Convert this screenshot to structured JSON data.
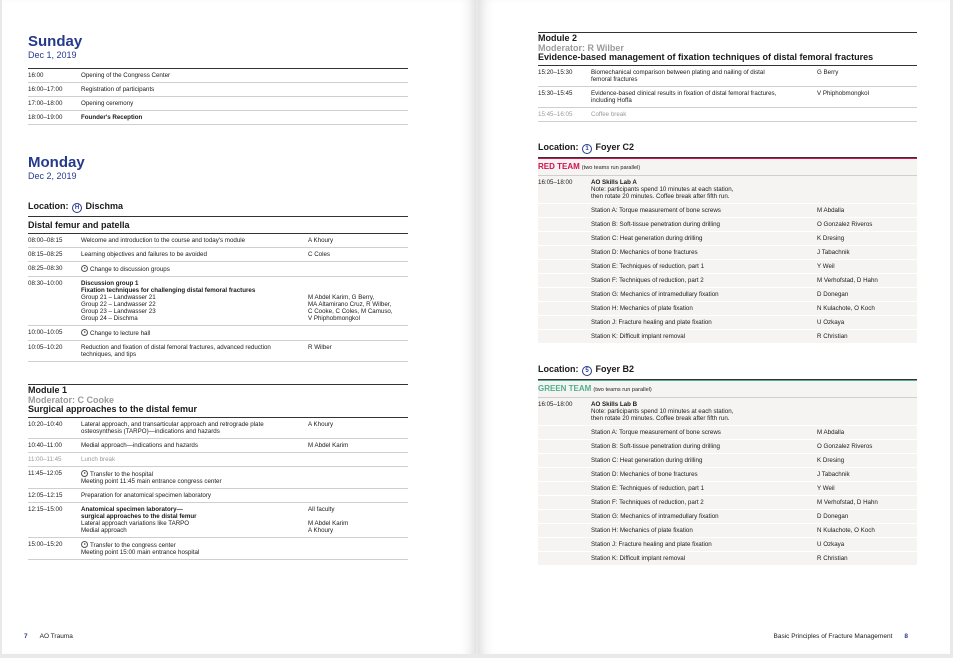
{
  "left_page": {
    "blocks": [
      {
        "day": "Sunday",
        "date": "Dec 1, 2019"
      },
      {
        "rows": [
          {
            "time": "16:00",
            "activity": [
              "Opening of the Congress Center"
            ]
          },
          {
            "time": "16:00–17:00",
            "activity": [
              "Registration of participants"
            ]
          },
          {
            "time": "17:00–18:00",
            "activity": [
              "Opening ceremony"
            ]
          },
          {
            "time": "18:00–19:00",
            "heading": [
              "Founder's Reception"
            ]
          }
        ]
      },
      {
        "day": "Monday",
        "date": "Dec 2, 2019"
      },
      {
        "label": "Location:",
        "icon": "H",
        "place": "Dischma"
      },
      {
        "section": "Distal femur and patella"
      },
      {
        "rows": [
          {
            "time": "08:00–08:15",
            "activity": [
              "Welcome and introduction to the course and today's module"
            ],
            "faculty": [
              "A Khoury"
            ]
          },
          {
            "time": "08:15–08:25",
            "activity": [
              "Learning objectives and failures to be avoided"
            ],
            "faculty": [
              "C Coles"
            ]
          },
          {
            "time": "08:25–08:30",
            "transfer": [
              "Change to discussion groups"
            ]
          },
          {
            "time": "08:30–10:00",
            "heading": [
              "Discussion group 1",
              "Fixation techniques for challenging distal femoral fractures"
            ],
            "activity": [
              "Group 21 – Landwasser 21",
              "Group 22 – Landwasser 22",
              "Group 23 – Landwasser 23",
              "Group 24 – Dischma"
            ],
            "faculty": [
              null,
              null,
              "M Abdel Karim, G Berry,",
              "MA Altamirano Cruz, R Wilber,",
              "C Cooke, C Coles, M Camuso,",
              "V Phiphobmongkol"
            ]
          },
          {
            "time": "10:00–10:05",
            "transfer": [
              "Change to lecture hall"
            ]
          },
          {
            "time": "10:05–10:20",
            "activity": [
              "Reduction and fixation of distal femoral fractures, advanced reduction",
              "techniques, and tips"
            ],
            "faculty": [
              "R Wilber"
            ]
          }
        ]
      },
      {
        "module": "Module 1",
        "moderator": "Moderator: C Cooke",
        "title": "Surgical approaches to the distal femur"
      },
      {
        "rows": [
          {
            "time": "10:20–10:40",
            "activity": [
              "Lateral approach, and transarticular approach and retrograde plate",
              "osteosynthesis (TARPO)—indications and hazards"
            ],
            "faculty": [
              "A Khoury"
            ]
          },
          {
            "time": "10:40–11:00",
            "activity": [
              "Medial approach—indications and hazards"
            ],
            "faculty": [
              "M Abdel Karim"
            ]
          },
          {
            "time": "11:00–11:45",
            "break": "Lunch break"
          },
          {
            "time": "11:45–12:05",
            "transfer": [
              "Transfer to the hospital",
              "Meeting point 11:45 main entrance congress center"
            ]
          },
          {
            "time": "12:05–12:15",
            "activity": [
              "Preparation for anatomical specimen laboratory"
            ]
          },
          {
            "time": "12:15–15:00",
            "heading": [
              "Anatomical specimen laboratory—",
              "surgical approaches to the distal femur"
            ],
            "activity": [
              "Lateral approach variations like TARPO",
              "Medial approach"
            ],
            "faculty": [
              "All faculty",
              null,
              "M Abdel Karim",
              "A Khoury"
            ]
          },
          {
            "time": "15:00–15:20",
            "transfer": [
              "Transfer to the congress center",
              "Meeting point 15:00 main entrance hospital"
            ]
          }
        ]
      }
    ],
    "footer": {
      "page_number": "7",
      "title": "AO Trauma"
    }
  },
  "right_page": {
    "blocks": [
      {
        "module": "Module 2",
        "moderator": "Moderator: R Wilber",
        "title": "Evidence-based management of fixation techniques of distal femoral fractures"
      },
      {
        "rows": [
          {
            "time": "15:20–15:30",
            "activity": [
              "Biomechanical comparison between plating and nailing of distal",
              "femoral fractures"
            ],
            "faculty": [
              "G Berry"
            ]
          },
          {
            "time": "15:30–15:45",
            "activity": [
              "Evidence-based clinical results in fixation of distal femoral fractures,",
              "including Hoffa"
            ],
            "faculty": [
              "V Phiphobmongkol"
            ]
          },
          {
            "time": "15:45–16:05",
            "break": "Coffee break"
          }
        ]
      },
      {
        "label": "Location:",
        "icon": "1",
        "place": "Foyer C2"
      },
      {
        "team": "RED TEAM",
        "note": "(two teams run parallel)",
        "color": "#d3114e",
        "rows": [
          {
            "time": "16:05–18:00",
            "heading": [
              "AO Skills Lab A"
            ],
            "activity": [
              "Note: participants spend 10 minutes at each station,",
              "then rotate 20 minutes. Coffee break after fifth run."
            ]
          },
          {
            "activity": [
              "Station A: Torque measurement of bone screws"
            ],
            "faculty": [
              "M Abdalla"
            ]
          },
          {
            "activity": [
              "Station B: Soft-tissue penetration during drilling"
            ],
            "faculty": [
              "O Gonzalez Riveros"
            ]
          },
          {
            "activity": [
              "Station C: Heat generation during drilling"
            ],
            "faculty": [
              "K Dresing"
            ]
          },
          {
            "activity": [
              "Station D: Mechanics of bone fractures"
            ],
            "faculty": [
              "J Tabachnik"
            ]
          },
          {
            "activity": [
              "Station E: Techniques of reduction, part 1"
            ],
            "faculty": [
              "Y Weil"
            ]
          },
          {
            "activity": [
              "Station F: Techniques of reduction, part 2"
            ],
            "faculty": [
              "M Verhofstad, D Hahn"
            ]
          },
          {
            "activity": [
              "Station G: Mechanics of intramedullary fixation"
            ],
            "faculty": [
              "D Donegan"
            ]
          },
          {
            "activity": [
              "Station H: Mechanics of plate fixation"
            ],
            "faculty": [
              "N Kulachote, O Koch"
            ]
          },
          {
            "activity": [
              "Station J: Fracture healing and plate fixation"
            ],
            "faculty": [
              "U Ozkaya"
            ]
          },
          {
            "activity": [
              "Station K: Difficult implant removal"
            ],
            "faculty": [
              "R Christian"
            ]
          }
        ]
      },
      {
        "label": "Location:",
        "icon": "5",
        "place": "Foyer B2"
      },
      {
        "team": "GREEN TEAM",
        "note": "(two teams run parallel)",
        "color": "#4fb08f",
        "rows": [
          {
            "time": "16:05–18:00",
            "heading": [
              "AO Skills Lab B"
            ],
            "activity": [
              "Note: participants spend 10 minutes at each station,",
              "then rotate 20 minutes. Coffee break after fifth run."
            ]
          },
          {
            "activity": [
              "Station A: Torque measurement of bone screws"
            ],
            "faculty": [
              "M Abdalla"
            ]
          },
          {
            "activity": [
              "Station B: Soft-tissue penetration during drilling"
            ],
            "faculty": [
              "O Gonzalez Riveros"
            ]
          },
          {
            "activity": [
              "Station C: Heat generation during drilling"
            ],
            "faculty": [
              "K Dresing"
            ]
          },
          {
            "activity": [
              "Station D: Mechanics of bone fractures"
            ],
            "faculty": [
              "J Tabachnik"
            ]
          },
          {
            "activity": [
              "Station E: Techniques of reduction, part 1"
            ],
            "faculty": [
              "Y Weil"
            ]
          },
          {
            "activity": [
              "Station F: Techniques of reduction, part 2"
            ],
            "faculty": [
              "M Verhofstad, D Hahn"
            ]
          },
          {
            "activity": [
              "Station G: Mechanics of intramedullary fixation"
            ],
            "faculty": [
              "D Donegan"
            ]
          },
          {
            "activity": [
              "Station H: Mechanics of plate fixation"
            ],
            "faculty": [
              "N Kulachote, O Koch"
            ]
          },
          {
            "activity": [
              "Station J: Fracture healing and plate fixation"
            ],
            "faculty": [
              "U Ozkaya"
            ]
          },
          {
            "activity": [
              "Station K: Difficult implant removal"
            ],
            "faculty": [
              "R Christian"
            ]
          }
        ]
      }
    ],
    "footer": {
      "title": "Basic Principles of Fracture Management",
      "page_number": "8"
    }
  }
}
